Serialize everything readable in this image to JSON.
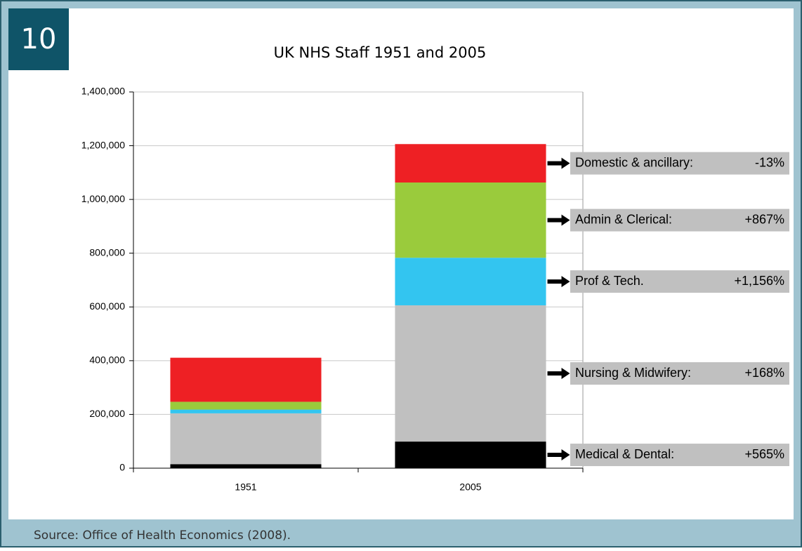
{
  "badge": "10",
  "source": "Source: Office of Health Economics (2008).",
  "chart_data": {
    "type": "stacked_bar",
    "title": "UK NHS Staff 1951 and 2005",
    "categories": [
      "1951",
      "2005"
    ],
    "series": [
      {
        "name": "Medical & Dental:",
        "annotation": "+565%",
        "color": "#000000",
        "values": [
          15000,
          99000
        ]
      },
      {
        "name": "Nursing & Midwifery:",
        "annotation": "+168%",
        "color": "#c0c0c0",
        "values": [
          189000,
          507000
        ]
      },
      {
        "name": "Prof & Tech.",
        "annotation": "+1,156%",
        "color": "#33c5f0",
        "values": [
          14000,
          177000
        ]
      },
      {
        "name": "Admin & Clerical:",
        "annotation": "+867%",
        "color": "#9acb3c",
        "values": [
          29000,
          280000
        ]
      },
      {
        "name": "Domestic & ancillary:",
        "annotation": "-13%",
        "color": "#ee2024",
        "values": [
          164000,
          143000
        ]
      }
    ],
    "ylim": [
      0,
      1400000
    ],
    "yticks": [
      0,
      {
        "value": 200000,
        "label": "200,000"
      },
      {
        "value": 400000,
        "label": "400,000"
      },
      {
        "value": 600000,
        "label": "600,000"
      },
      {
        "value": 800000,
        "label": "800,000"
      },
      {
        "value": 1000000,
        "label": "1,000,000"
      },
      {
        "value": 1200000,
        "label": "1,200,000"
      },
      {
        "value": 1400000,
        "label": "1,400,000"
      }
    ],
    "grid": true
  }
}
